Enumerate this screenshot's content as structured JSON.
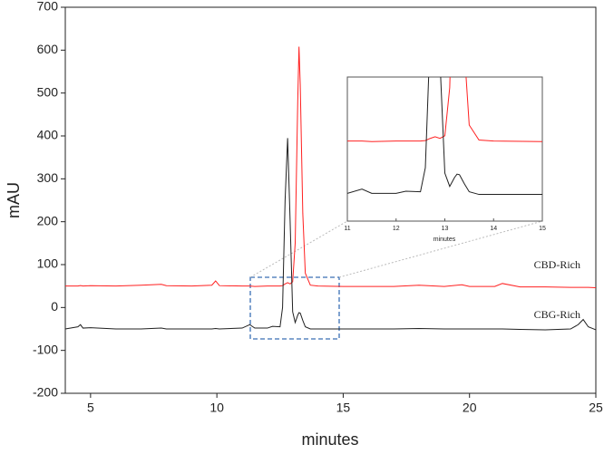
{
  "chart_data": {
    "type": "line",
    "xlabel": "minutes",
    "ylabel": "mAU",
    "xlim": [
      4,
      25
    ],
    "xticks": [
      5,
      10,
      15,
      20,
      25
    ],
    "ylim": [
      -200,
      700
    ],
    "yticks": [
      -200,
      -100,
      0,
      100,
      200,
      300,
      400,
      500,
      600,
      700
    ],
    "x": [
      4,
      4.5,
      4.6,
      4.7,
      5,
      6,
      7,
      7.8,
      8,
      9,
      9.8,
      9.95,
      10.1,
      11,
      11.3,
      11.5,
      12,
      12.2,
      12.5,
      12.6,
      12.7,
      12.8,
      12.9,
      13.0,
      13.1,
      13.2,
      13.25,
      13.3,
      13.4,
      13.5,
      13.7,
      14,
      15,
      16,
      17,
      18,
      19,
      19.7,
      20,
      21,
      21.3,
      22,
      23,
      24,
      24.3,
      24.5,
      24.7,
      25
    ],
    "series": [
      {
        "name": "CBD-Rich",
        "color": "#ff2020",
        "values": [
          50,
          50,
          51,
          50,
          51,
          50,
          52,
          54,
          51,
          50,
          52,
          62,
          51,
          50,
          50,
          49,
          50,
          50,
          50,
          51,
          55,
          58,
          55,
          60,
          150,
          480,
          608,
          520,
          220,
          80,
          52,
          50,
          49,
          49,
          49,
          52,
          49,
          53,
          49,
          49,
          56,
          48,
          48,
          47,
          47,
          47,
          47,
          46
        ]
      },
      {
        "name": "CBG-Rich",
        "color": "#202020",
        "values": [
          -50,
          -45,
          -40,
          -48,
          -47,
          -50,
          -50,
          -48,
          -50,
          -50,
          -50,
          -49,
          -50,
          -48,
          -40,
          -48,
          -48,
          -44,
          -45,
          0,
          250,
          395,
          200,
          -10,
          -35,
          -18,
          -12,
          -13,
          -30,
          -45,
          -50,
          -50,
          -50,
          -50,
          -50,
          -49,
          -50,
          -50,
          -50,
          -50,
          -50,
          -51,
          -52,
          -50,
          -40,
          -28,
          -45,
          -52
        ]
      }
    ],
    "inset": {
      "xlabel": "minutes",
      "xlim": [
        11,
        15
      ],
      "xticks": [
        11,
        12,
        13,
        14,
        15
      ],
      "ylim": [
        -100,
        170
      ]
    }
  }
}
